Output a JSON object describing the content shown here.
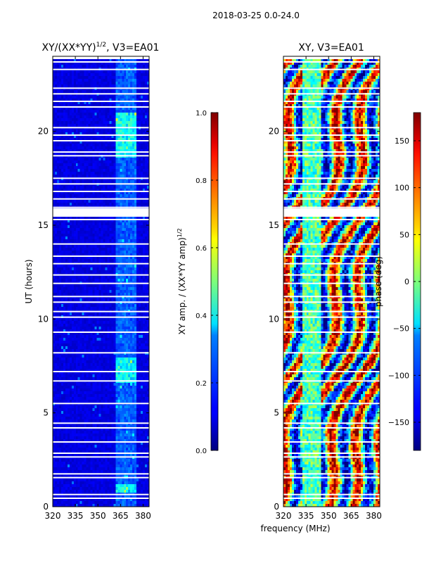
{
  "figure": {
    "suptitle": "2018-03-25 0.0-24.0",
    "xlabel": "frequency (MHz)",
    "ylabel": "UT (hours)"
  },
  "chart_data": [
    {
      "type": "heatmap",
      "title_prefix": "XY/(XX*YY)",
      "title_sup": "1/2",
      "title_suffix": ", V3=EA01",
      "xlim": [
        320,
        384
      ],
      "ylim": [
        0,
        24
      ],
      "xticks": [
        320,
        335,
        350,
        365,
        380
      ],
      "yticks": [
        0,
        5,
        10,
        15,
        20
      ],
      "colorbar": {
        "label_prefix": "XY amp. / (XX*YY amp)",
        "label_sup": "1/2",
        "range": [
          0.0,
          1.0
        ],
        "ticks": [
          "0.0",
          "0.2",
          "0.4",
          "0.6",
          "0.8",
          "1.0"
        ],
        "tick_values": [
          0.0,
          0.2,
          0.4,
          0.6,
          0.8,
          1.0
        ]
      },
      "gap_rows_hours": [
        0.45,
        0.65,
        1.55,
        1.75,
        2.65,
        2.85,
        3.45,
        4.2,
        4.45,
        5.5,
        6.7,
        7.2,
        8.2,
        9.3,
        10.1,
        10.4,
        10.9,
        11.2,
        11.9,
        12.35,
        12.95,
        13.35,
        14.0,
        15.3,
        15.95,
        16.4,
        16.8,
        17.2,
        17.5,
        18.7,
        18.9,
        19.5,
        19.8,
        20.2,
        21.3,
        21.6,
        22.0,
        22.3,
        23.3,
        23.7
      ],
      "gap_bands_hours": [
        [
          15.45,
          15.9
        ],
        [
          23.85,
          24.0
        ]
      ],
      "bright_channel_range_mhz": [
        362,
        376
      ],
      "bright_time_ranges_hours": [
        [
          18.6,
          21.0
        ],
        [
          6.6,
          8.0
        ],
        [
          0.8,
          1.2
        ]
      ]
    },
    {
      "type": "heatmap",
      "title": "XY, V3=EA01",
      "xlim": [
        320,
        384
      ],
      "ylim": [
        0,
        24
      ],
      "xticks": [
        320,
        335,
        350,
        365,
        380
      ],
      "yticks": [
        0,
        5,
        10,
        15,
        20
      ],
      "colorbar": {
        "label": "phase (deg)",
        "range": [
          -180,
          180
        ],
        "ticks": [
          "−150",
          "−100",
          "−50",
          "0",
          "50",
          "100",
          "150"
        ],
        "tick_values": [
          -150,
          -100,
          -50,
          0,
          50,
          100,
          150
        ]
      },
      "gap_rows_hours": [
        0.45,
        0.65,
        1.55,
        1.75,
        2.65,
        2.85,
        3.45,
        4.2,
        4.45,
        5.5,
        6.7,
        7.2,
        8.2,
        9.3,
        10.1,
        10.4,
        10.9,
        11.2,
        11.9,
        12.35,
        12.95,
        13.35,
        14.0,
        15.3,
        15.95,
        16.4,
        16.8,
        17.2,
        17.5,
        18.7,
        18.9,
        19.5,
        19.8,
        20.2,
        21.3,
        21.6,
        22.0,
        22.3,
        23.3,
        23.7
      ],
      "gap_bands_hours": [
        [
          15.45,
          15.9
        ],
        [
          23.85,
          24.0
        ]
      ]
    }
  ]
}
